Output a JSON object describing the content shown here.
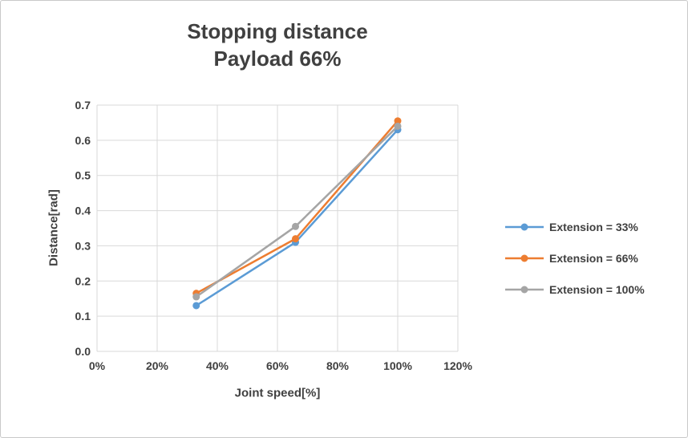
{
  "figure": {
    "background": "#FFFFFF",
    "border_color": "#C9C9C9",
    "text_color": "#404040"
  },
  "chart_data": {
    "type": "line",
    "title": "Stopping distance",
    "subtitle": "Payload 66%",
    "xlabel": "Joint speed[%]",
    "ylabel": "Distance[rad]",
    "xlim": [
      0,
      120
    ],
    "ylim": [
      0,
      0.7
    ],
    "grid": true,
    "grid_color": "#D9D9D9",
    "legend_position": "right",
    "x": [
      33,
      66,
      100
    ],
    "series": [
      {
        "name": "Extension = 33%",
        "color": "#5B9BD5",
        "values": [
          0.13,
          0.31,
          0.63
        ]
      },
      {
        "name": "Extension = 66%",
        "color": "#ED7D31",
        "values": [
          0.165,
          0.32,
          0.655
        ]
      },
      {
        "name": "Extension = 100%",
        "color": "#A5A5A5",
        "values": [
          0.155,
          0.355,
          0.64
        ]
      }
    ],
    "x_ticks": {
      "values": [
        0,
        20,
        40,
        60,
        80,
        100,
        120
      ],
      "labels": [
        "0%",
        "20%",
        "40%",
        "60%",
        "80%",
        "100%",
        "120%"
      ]
    },
    "y_ticks": {
      "values": [
        0,
        0.1,
        0.2,
        0.3,
        0.4,
        0.5,
        0.6,
        0.7
      ],
      "labels": [
        "0.0",
        "0.1",
        "0.2",
        "0.3",
        "0.4",
        "0.5",
        "0.6",
        "0.7"
      ]
    }
  }
}
